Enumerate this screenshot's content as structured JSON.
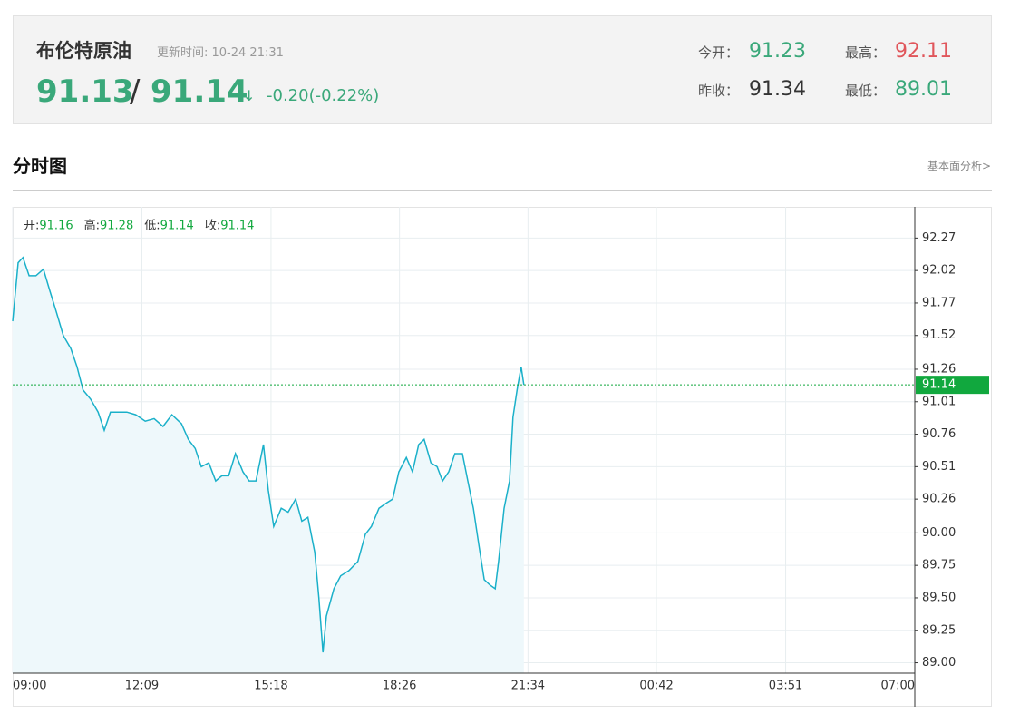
{
  "header": {
    "title": "布伦特原油",
    "update_time": "更新时间: 10-24 21:31",
    "bid": 91.13,
    "separator": "/",
    "ask": 91.14,
    "arrow": "↓",
    "change": "-0.20(-0.22%)",
    "stats": [
      {
        "label": "今开：",
        "value": 91.23
      },
      {
        "label": "最高：",
        "value": 92.11
      },
      {
        "label": "昨收：",
        "value": 91.34
      },
      {
        "label": "最低：",
        "value": 89.01
      }
    ]
  },
  "section": {
    "title": "分时图",
    "link": "基本面分析>"
  },
  "chart_data": {
    "type": "line",
    "color": "#1ab0c9",
    "fill_color": "#eef8fb",
    "grid": true,
    "ohlc": [
      {
        "label": "开:",
        "value": 91.16
      },
      {
        "label": "高:",
        "value": 91.28
      },
      {
        "label": "低:",
        "value": 91.14
      },
      {
        "label": "收:",
        "value": 91.14
      }
    ],
    "last_value": 91.14,
    "last_color": "#11a83e",
    "xlim": [
      0,
      1320
    ],
    "xticks": [
      {
        "value": 0,
        "label": "09:00"
      },
      {
        "value": 189,
        "label": "12:09"
      },
      {
        "value": 378,
        "label": "15:18"
      },
      {
        "value": 566,
        "label": "18:26"
      },
      {
        "value": 754,
        "label": "21:34"
      },
      {
        "value": 942,
        "label": "00:42"
      },
      {
        "value": 1131,
        "label": "03:51"
      },
      {
        "value": 1320,
        "label": "07:00"
      }
    ],
    "ylim": [
      88.92,
      92.51
    ],
    "yticks": [
      92.27,
      92.02,
      91.77,
      91.52,
      91.26,
      91.01,
      90.76,
      90.51,
      90.26,
      {
        "value": 90,
        "label": "90.00"
      },
      89.75,
      {
        "value": 89.5,
        "label": "89.50"
      },
      89.25,
      {
        "value": 89,
        "label": "89.00"
      }
    ],
    "x": [
      0,
      8,
      15,
      24,
      34,
      45,
      54,
      64,
      74,
      85,
      94,
      103,
      114,
      125,
      134,
      143,
      154,
      167,
      180,
      194,
      207,
      220,
      233,
      247,
      257,
      267,
      276,
      287,
      297,
      306,
      316,
      326,
      337,
      346,
      356,
      367,
      374,
      382,
      393,
      403,
      414,
      423,
      432,
      442,
      448,
      454,
      459,
      470,
      480,
      492,
      505,
      516,
      525,
      536,
      547,
      556,
      565,
      576,
      585,
      594,
      602,
      612,
      621,
      629,
      638,
      647,
      658,
      666,
      674,
      682,
      690,
      698,
      706,
      711,
      719,
      727,
      732,
      738,
      744,
      748
    ],
    "values": [
      91.63,
      92.08,
      92.12,
      91.98,
      91.98,
      92.03,
      91.87,
      91.7,
      91.52,
      91.42,
      91.28,
      91.1,
      91.03,
      90.93,
      90.79,
      90.93,
      90.93,
      90.93,
      90.91,
      90.86,
      90.88,
      90.82,
      90.91,
      90.84,
      90.72,
      90.65,
      90.51,
      90.54,
      90.4,
      90.44,
      90.44,
      90.61,
      90.47,
      90.4,
      90.4,
      90.68,
      90.33,
      90.05,
      90.19,
      90.16,
      90.26,
      90.09,
      90.12,
      89.85,
      89.5,
      89.08,
      89.36,
      89.57,
      89.67,
      89.71,
      89.78,
      89.99,
      90.05,
      90.19,
      90.23,
      90.26,
      90.47,
      90.58,
      90.47,
      90.68,
      90.72,
      90.54,
      90.51,
      90.4,
      90.47,
      90.61,
      90.61,
      90.4,
      90.19,
      89.91,
      89.64,
      89.6,
      89.57,
      89.78,
      90.19,
      90.4,
      90.89,
      91.1,
      91.28,
      91.14
    ]
  }
}
